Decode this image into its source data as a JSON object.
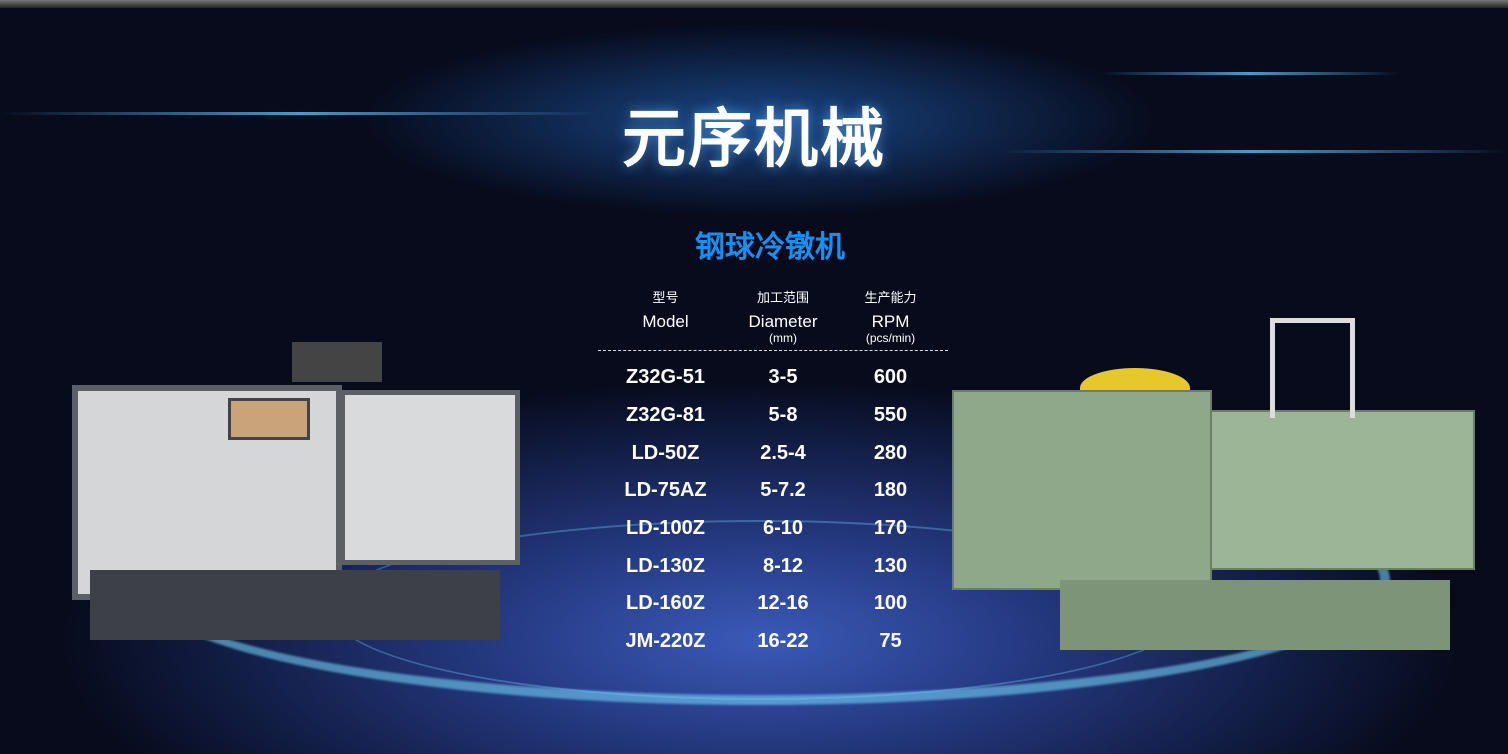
{
  "header": {
    "title": "元序机械",
    "subtitle": "钢球冷镦机"
  },
  "table": {
    "columns": [
      {
        "zh": "型号",
        "en": "Model",
        "unit": ""
      },
      {
        "zh": "加工范围",
        "en": "Diameter",
        "unit": "(mm)"
      },
      {
        "zh": "生产能力",
        "en": "RPM",
        "unit": "(pcs/min)"
      }
    ],
    "rows": [
      [
        "Z32G-51",
        "3-5",
        "600"
      ],
      [
        "Z32G-81",
        "5-8",
        "550"
      ],
      [
        "LD-50Z",
        "2.5-4",
        "280"
      ],
      [
        "LD-75AZ",
        "5-7.2",
        "180"
      ],
      [
        "LD-100Z",
        "6-10",
        "170"
      ],
      [
        "LD-130Z",
        "8-12",
        "130"
      ],
      [
        "LD-160Z",
        "12-16",
        "100"
      ],
      [
        "JM-220Z",
        "16-22",
        "75"
      ]
    ]
  },
  "colors": {
    "accent": "#1a8ff0",
    "background": "#0b1230"
  }
}
